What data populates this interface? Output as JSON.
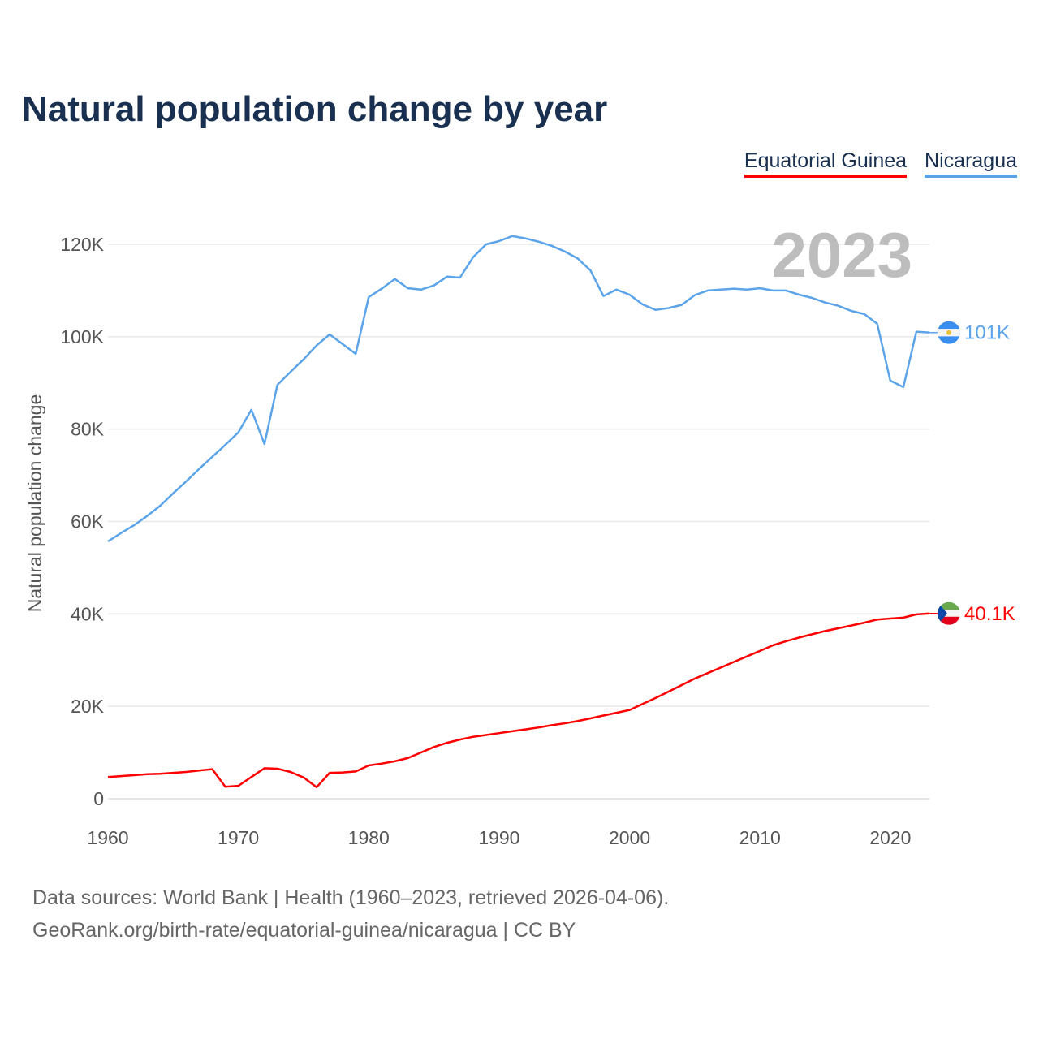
{
  "chart_data": {
    "type": "line",
    "title": "Natural population change by year",
    "xlabel": "",
    "ylabel": "Natural population change",
    "xlim": [
      1960,
      2023
    ],
    "ylim": [
      0,
      120000
    ],
    "x_ticks": [
      "1960",
      "1970",
      "1980",
      "1990",
      "2000",
      "2010",
      "2020"
    ],
    "y_ticks": [
      {
        "v": 0,
        "label": "0"
      },
      {
        "v": 20000,
        "label": "20K"
      },
      {
        "v": 40000,
        "label": "40K"
      },
      {
        "v": 60000,
        "label": "60K"
      },
      {
        "v": 80000,
        "label": "80K"
      },
      {
        "v": 100000,
        "label": "100K"
      },
      {
        "v": 120000,
        "label": "120K"
      }
    ],
    "grid": true,
    "legend_position": "top-right",
    "current_year": "2023",
    "x_start": 1960,
    "series": [
      {
        "name": "Equatorial Guinea",
        "color": "#ff0000",
        "end_label": "40.1K",
        "flag": "equatorial-guinea-flag",
        "values_k": [
          4.7,
          4.9,
          5.1,
          5.3,
          5.4,
          5.6,
          5.8,
          6.1,
          6.4,
          2.6,
          2.8,
          4.7,
          6.6,
          6.5,
          5.8,
          4.6,
          2.5,
          5.6,
          5.7,
          5.9,
          7.2,
          7.6,
          8.1,
          8.8,
          10.0,
          11.2,
          12.1,
          12.8,
          13.4,
          13.8,
          14.2,
          14.6,
          15.0,
          15.4,
          15.9,
          16.3,
          16.8,
          17.4,
          18.0,
          18.6,
          19.2,
          20.5,
          21.8,
          23.2,
          24.6,
          26.0,
          27.2,
          28.4,
          29.6,
          30.8,
          32.0,
          33.2,
          34.1,
          34.9,
          35.6,
          36.3,
          36.9,
          37.5,
          38.1,
          38.8,
          39.0,
          39.2,
          39.9,
          40.1
        ]
      },
      {
        "name": "Nicaragua",
        "color": "#5ba4ea",
        "end_label": "101K",
        "flag": "nicaragua-flag",
        "values_k": [
          55.7,
          57.5,
          59.2,
          61.2,
          63.4,
          66.1,
          68.7,
          71.4,
          74.0,
          76.6,
          79.3,
          84.2,
          76.8,
          89.6,
          92.4,
          95.1,
          98.1,
          100.5,
          98.4,
          96.3,
          108.6,
          110.4,
          112.5,
          110.5,
          110.2,
          111.1,
          113.0,
          112.8,
          117.2,
          120.0,
          120.7,
          121.8,
          121.3,
          120.6,
          119.7,
          118.5,
          117.0,
          114.4,
          108.8,
          110.2,
          109.1,
          107.0,
          105.8,
          106.2,
          106.9,
          109.0,
          110.0,
          110.2,
          110.4,
          110.2,
          110.5,
          110.0,
          110.0,
          109.1,
          108.4,
          107.4,
          106.7,
          105.6,
          104.9,
          102.8,
          90.5,
          89.1,
          101.1,
          100.9
        ]
      }
    ]
  },
  "footer": {
    "line1": "Data sources: World Bank | Health (1960–2023, retrieved 2026-04-06).",
    "line2": "GeoRank.org/birth-rate/equatorial-guinea/nicaragua | CC BY"
  }
}
